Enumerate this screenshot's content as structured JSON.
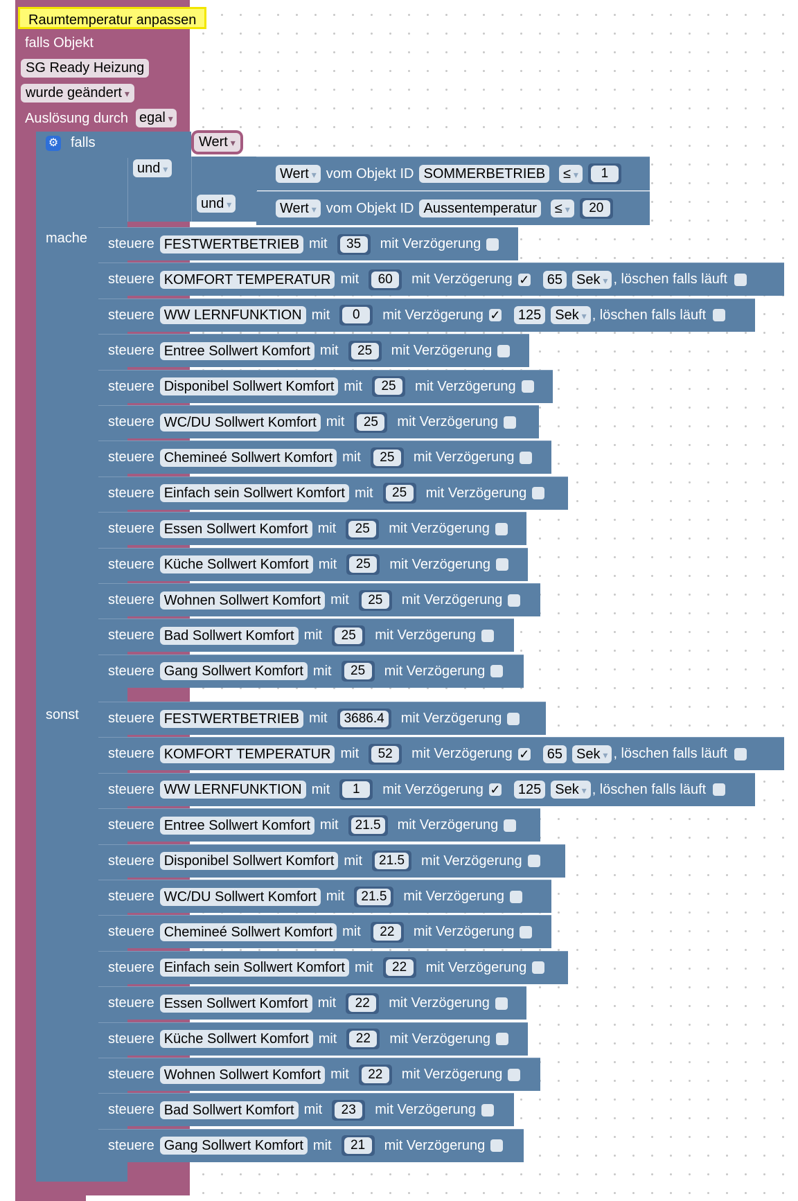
{
  "trigger": {
    "title": "Raumtemperatur anpassen",
    "if_object_label": "falls Objekt",
    "object_name": "SG Ready Heizung",
    "change_mode": "wurde geändert",
    "triggered_by_label": "Auslösung durch",
    "triggered_by_value": "egal"
  },
  "if_block": {
    "if_label": "falls",
    "do_label": "mache",
    "else_label": "sonst",
    "cond_value": "Wert",
    "and1": "und",
    "and2": "und",
    "conditions": [
      {
        "value_label": "Wert",
        "from_label": "vom Objekt ID",
        "object": "SOMMERBETRIEB",
        "operator": "≤",
        "number": "1"
      },
      {
        "value_label": "Wert",
        "from_label": "vom Objekt ID",
        "object": "Aussentemperatur",
        "operator": "≤",
        "number": "20"
      }
    ]
  },
  "labels": {
    "steuere": "steuere",
    "mit": "mit",
    "delay": "mit Verzögerung",
    "unit": "Sek",
    "clear": ", löschen falls läuft"
  },
  "do_rows": [
    {
      "object": "FESTWERTBETRIEB",
      "value": "35",
      "delay": false
    },
    {
      "object": "KOMFORT TEMPERATUR",
      "value": "60",
      "delay": true,
      "check": "✓",
      "delay_value": "65"
    },
    {
      "object": "WW LERNFUNKTION",
      "value": "0",
      "delay": true,
      "check": "✓",
      "delay_value": "125"
    },
    {
      "object": "Entree Sollwert Komfort",
      "value": "25",
      "delay": false
    },
    {
      "object": "Disponibel Sollwert Komfort",
      "value": "25",
      "delay": false
    },
    {
      "object": "WC/DU  Sollwert Komfort",
      "value": "25",
      "delay": false
    },
    {
      "object": "Chemineé Sollwert Komfort",
      "value": "25",
      "delay": false
    },
    {
      "object": "Einfach sein  Sollwert Komfort",
      "value": "25",
      "delay": false
    },
    {
      "object": "Essen Sollwert Komfort",
      "value": "25",
      "delay": false
    },
    {
      "object": "Küche Sollwert Komfort",
      "value": "25",
      "delay": false
    },
    {
      "object": "Wohnen Sollwert Komfort",
      "value": "25",
      "delay": false
    },
    {
      "object": "Bad Sollwert Komfort",
      "value": "25",
      "delay": false
    },
    {
      "object": "Gang Sollwert Komfort",
      "value": "25",
      "delay": false
    }
  ],
  "else_rows": [
    {
      "object": "FESTWERTBETRIEB",
      "value": "3686.4",
      "delay": false
    },
    {
      "object": "KOMFORT TEMPERATUR",
      "value": "52",
      "delay": true,
      "check": "✓",
      "delay_value": "65"
    },
    {
      "object": "WW LERNFUNKTION",
      "value": "1",
      "delay": true,
      "check": "✓",
      "delay_value": "125"
    },
    {
      "object": "Entree Sollwert Komfort",
      "value": "21.5",
      "delay": false
    },
    {
      "object": "Disponibel Sollwert Komfort",
      "value": "21.5",
      "delay": false
    },
    {
      "object": "WC/DU  Sollwert Komfort",
      "value": "21.5",
      "delay": false
    },
    {
      "object": "Chemineé Sollwert Komfort",
      "value": "22",
      "delay": false
    },
    {
      "object": "Einfach sein  Sollwert Komfort",
      "value": "22",
      "delay": false
    },
    {
      "object": "Essen Sollwert Komfort",
      "value": "22",
      "delay": false
    },
    {
      "object": "Küche Sollwert Komfort",
      "value": "22",
      "delay": false
    },
    {
      "object": "Wohnen Sollwert Komfort",
      "value": "22",
      "delay": false
    },
    {
      "object": "Bad Sollwert Komfort",
      "value": "23",
      "delay": false
    },
    {
      "object": "Gang Sollwert Komfort",
      "value": "21",
      "delay": false
    }
  ],
  "colors": {
    "trigger_block": "#a55b80",
    "logic_block": "#5a80a5",
    "comment": "#fffb72"
  }
}
